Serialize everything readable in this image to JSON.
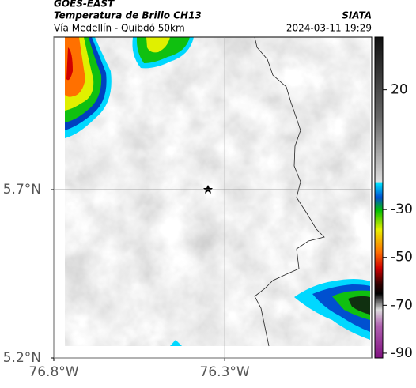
{
  "header": {
    "title": "GOES-EAST",
    "subtitle": "Temperatura de Brillo CH13",
    "region": "Vía Medellín - Quibdó 50km",
    "source": "SIATA",
    "timestamp": "2024-03-11 19:29"
  },
  "map": {
    "xlim": [
      -76.8,
      -75.87
    ],
    "ylim": [
      5.2,
      6.153
    ],
    "xticks": [
      {
        "value": -76.8,
        "label": "76.8°W"
      },
      {
        "value": -76.3,
        "label": "76.3°W"
      }
    ],
    "yticks": [
      {
        "value": 5.2,
        "label": "5.2°N"
      },
      {
        "value": 5.7,
        "label": "5.7°N"
      }
    ],
    "grid": true
  },
  "colorbar": {
    "lim": [
      -92,
      42
    ],
    "ticks": [
      20,
      -30,
      -50,
      -70,
      -90
    ]
  }
}
